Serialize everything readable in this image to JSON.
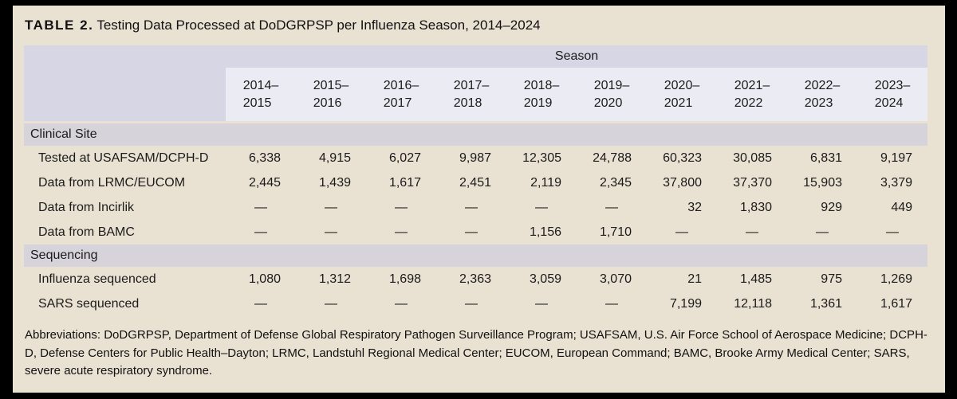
{
  "title": {
    "label": "TABLE 2.",
    "text": "Testing Data Processed at DoDGRPSP per Influenza Season, 2014–2024"
  },
  "table": {
    "season_header": "Season",
    "seasons": [
      "2014–\n2015",
      "2015–\n2016",
      "2016–\n2017",
      "2017–\n2018",
      "2018–\n2019",
      "2019–\n2020",
      "2020–\n2021",
      "2021–\n2022",
      "2022–\n2023",
      "2023–\n2024"
    ],
    "sections": [
      {
        "label": "Clinical Site",
        "rows": [
          {
            "label": "Tested at USAFSAM/DCPH-D",
            "values": [
              "6,338",
              "4,915",
              "6,027",
              "9,987",
              "12,305",
              "24,788",
              "60,323",
              "30,085",
              "6,831",
              "9,197"
            ]
          },
          {
            "label": "Data from LRMC/EUCOM",
            "values": [
              "2,445",
              "1,439",
              "1,617",
              "2,451",
              "2,119",
              "2,345",
              "37,800",
              "37,370",
              "15,903",
              "3,379"
            ]
          },
          {
            "label": "Data from Incirlik",
            "values": [
              "—",
              "—",
              "—",
              "—",
              "—",
              "—",
              "32",
              "1,830",
              "929",
              "449"
            ]
          },
          {
            "label": "Data from BAMC",
            "values": [
              "—",
              "—",
              "—",
              "—",
              "1,156",
              "1,710",
              "—",
              "—",
              "—",
              "—"
            ]
          }
        ]
      },
      {
        "label": "Sequencing",
        "rows": [
          {
            "label": "Influenza sequenced",
            "values": [
              "1,080",
              "1,312",
              "1,698",
              "2,363",
              "3,059",
              "3,070",
              "21",
              "1,485",
              "975",
              "1,269"
            ]
          },
          {
            "label": "SARS sequenced",
            "values": [
              "—",
              "—",
              "—",
              "—",
              "—",
              "—",
              "7,199",
              "12,118",
              "1,361",
              "1,617"
            ]
          }
        ]
      }
    ]
  },
  "footnote": "Abbreviations: DoDGRPSP, Department of Defense Global Respiratory Pathogen Surveillance Program; USAFSAM, U.S. Air Force School of Aerospace Medicine; DCPH-D, Defense Centers for Public Health–Dayton; LRMC, Landstuhl Regional Medical Center; EUCOM, European Command; BAMC, Brooke Army Medical Center; SARS, severe acute respiratory syndrome."
}
